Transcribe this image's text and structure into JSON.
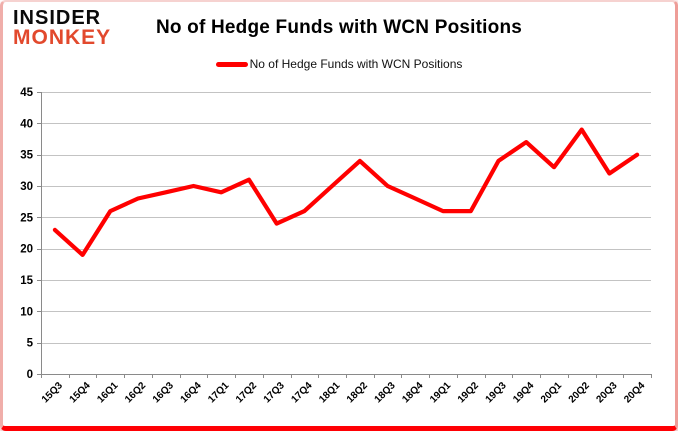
{
  "brand": {
    "line1": "INSIDER",
    "line2": "MONKEY",
    "color": "#e2492d"
  },
  "header": {
    "title": "No of Hedge Funds with WCN Positions"
  },
  "legend": {
    "label": "No of Hedge Funds with WCN Positions",
    "color": "#ff0000"
  },
  "chart_data": {
    "type": "line",
    "title": "No of Hedge Funds with WCN Positions",
    "categories": [
      "15Q3",
      "15Q4",
      "16Q1",
      "16Q2",
      "16Q3",
      "16Q4",
      "17Q1",
      "17Q2",
      "17Q3",
      "17Q4",
      "18Q1",
      "18Q2",
      "18Q3",
      "18Q4",
      "19Q1",
      "19Q2",
      "19Q3",
      "19Q4",
      "20Q1",
      "20Q2",
      "20Q3",
      "20Q4"
    ],
    "series": [
      {
        "name": "No of Hedge Funds with WCN Positions",
        "color": "#ff0000",
        "values": [
          23,
          19,
          26,
          28,
          29,
          30,
          29,
          31,
          24,
          26,
          30,
          34,
          30,
          28,
          26,
          26,
          34,
          37,
          33,
          39,
          32,
          35
        ]
      }
    ],
    "ylim": [
      0,
      45
    ],
    "yticks": [
      0,
      5,
      10,
      15,
      20,
      25,
      30,
      35,
      40,
      45
    ],
    "grid": "horizontal-only",
    "legend_position": "top-center",
    "xlabel": "",
    "ylabel": ""
  },
  "style": {
    "line_color": "#ff0000",
    "grid_color": "#c3c3c3",
    "axis_color": "#8a8a8a",
    "label_color": "#000000",
    "frame_bottom_color": "#ff0004"
  }
}
